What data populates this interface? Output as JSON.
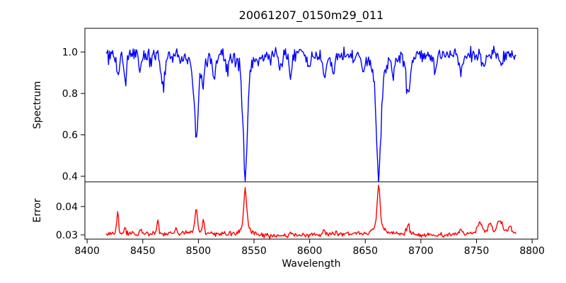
{
  "figure": {
    "title": "20061207_0150m29_011",
    "background": "#ffffff"
  },
  "axes": {
    "xlabel": "Wavelength",
    "xticks": [
      8400,
      8450,
      8500,
      8550,
      8600,
      8650,
      8700,
      8750,
      8800
    ],
    "xtick_labels": [
      "8400",
      "8450",
      "8500",
      "8550",
      "8600",
      "8650",
      "8700",
      "8750",
      "8800"
    ],
    "xlim": [
      8398,
      8805
    ]
  },
  "chart_data": [
    {
      "type": "line",
      "series_name": "spectrum",
      "title": "20061207_0150m29_011",
      "xlabel": "Wavelength",
      "ylabel": "Spectrum",
      "color": "#0000ff",
      "xlim": [
        8398,
        8805
      ],
      "ylim": [
        0.373,
        1.115
      ],
      "yticks": [
        0.4,
        0.6,
        0.8,
        1.0
      ],
      "ytick_labels": [
        "0.4",
        "0.6",
        "0.8",
        "1.0"
      ],
      "x_start": 8417,
      "x_end": 8786,
      "x_step": 0.74,
      "continuum": 0.985,
      "noise_seed": 20061207,
      "noise_sigma_factor": 0.62,
      "absorption_lines": [
        {
          "center": 8427.5,
          "depth": 0.105,
          "sigma": 1.2
        },
        {
          "center": 8434.0,
          "depth": 0.125,
          "sigma": 1.3
        },
        {
          "center": 8447.5,
          "depth": 0.085,
          "sigma": 1.2
        },
        {
          "center": 8468.4,
          "depth": 0.145,
          "sigma": 1.6
        },
        {
          "center": 8498.0,
          "depth": 0.385,
          "sigma": 1.7,
          "gamma": 3.0
        },
        {
          "center": 8504.0,
          "depth": 0.13,
          "sigma": 1.3
        },
        {
          "center": 8514.1,
          "depth": 0.1,
          "sigma": 1.4
        },
        {
          "center": 8526.0,
          "depth": 0.06,
          "sigma": 1.2
        },
        {
          "center": 8542.1,
          "depth": 0.575,
          "sigma": 1.9,
          "gamma": 3.4
        },
        {
          "center": 8574.0,
          "depth": 0.065,
          "sigma": 1.2
        },
        {
          "center": 8583.0,
          "depth": 0.095,
          "sigma": 1.3
        },
        {
          "center": 8598.8,
          "depth": 0.075,
          "sigma": 1.2
        },
        {
          "center": 8613.0,
          "depth": 0.11,
          "sigma": 1.5
        },
        {
          "center": 8621.5,
          "depth": 0.09,
          "sigma": 1.3
        },
        {
          "center": 8648.0,
          "depth": 0.06,
          "sigma": 1.2
        },
        {
          "center": 8662.1,
          "depth": 0.59,
          "sigma": 1.9,
          "gamma": 3.4
        },
        {
          "center": 8675.0,
          "depth": 0.075,
          "sigma": 1.2
        },
        {
          "center": 8688.6,
          "depth": 0.185,
          "sigma": 1.9
        },
        {
          "center": 8713.0,
          "depth": 0.065,
          "sigma": 1.3
        },
        {
          "center": 8736.0,
          "depth": 0.075,
          "sigma": 1.4
        },
        {
          "center": 8757.0,
          "depth": 0.055,
          "sigma": 1.3
        },
        {
          "center": 8772.0,
          "depth": 0.055,
          "sigma": 1.3
        }
      ]
    },
    {
      "type": "line",
      "series_name": "error",
      "ylabel": "Error",
      "color": "#ff0000",
      "xlim": [
        8398,
        8805
      ],
      "ylim": [
        0.0285,
        0.0487
      ],
      "yticks": [
        0.03,
        0.04
      ],
      "ytick_labels": [
        "0.03",
        "0.04"
      ],
      "baseline": 0.0304,
      "noise_sigma": 0.00042,
      "baseline_bumps": [
        {
          "center": 8575,
          "amp": -0.0008,
          "sigma": 25
        },
        {
          "center": 8715,
          "amp": -0.0005,
          "sigma": 18
        },
        {
          "center": 8770,
          "amp": 0.0005,
          "sigma": 22
        }
      ],
      "peaks": [
        {
          "center": 8427.5,
          "height": 0.008,
          "sigma": 0.8
        },
        {
          "center": 8434.0,
          "height": 0.0015,
          "sigma": 0.8
        },
        {
          "center": 8448.0,
          "height": 0.0018,
          "sigma": 0.8
        },
        {
          "center": 8463.5,
          "height": 0.005,
          "sigma": 0.8
        },
        {
          "center": 8480.0,
          "height": 0.0018,
          "sigma": 0.9
        },
        {
          "center": 8498.0,
          "height": 0.0086,
          "sigma": 1.0,
          "gamma": 2.0
        },
        {
          "center": 8504.5,
          "height": 0.0042,
          "sigma": 0.8
        },
        {
          "center": 8542.1,
          "height": 0.0163,
          "sigma": 1.2,
          "gamma": 2.6
        },
        {
          "center": 8583.0,
          "height": 0.0015,
          "sigma": 0.9
        },
        {
          "center": 8613.0,
          "height": 0.0018,
          "sigma": 0.9
        },
        {
          "center": 8662.1,
          "height": 0.0168,
          "sigma": 1.2,
          "gamma": 2.8
        },
        {
          "center": 8688.6,
          "height": 0.0032,
          "sigma": 1.3
        },
        {
          "center": 8736.0,
          "height": 0.0015,
          "sigma": 1.2
        },
        {
          "center": 8753.0,
          "height": 0.0035,
          "sigma": 2.2
        },
        {
          "center": 8762.0,
          "height": 0.003,
          "sigma": 1.6
        },
        {
          "center": 8771.0,
          "height": 0.0042,
          "sigma": 2.2
        },
        {
          "center": 8780.0,
          "height": 0.0022,
          "sigma": 1.6
        }
      ]
    }
  ]
}
